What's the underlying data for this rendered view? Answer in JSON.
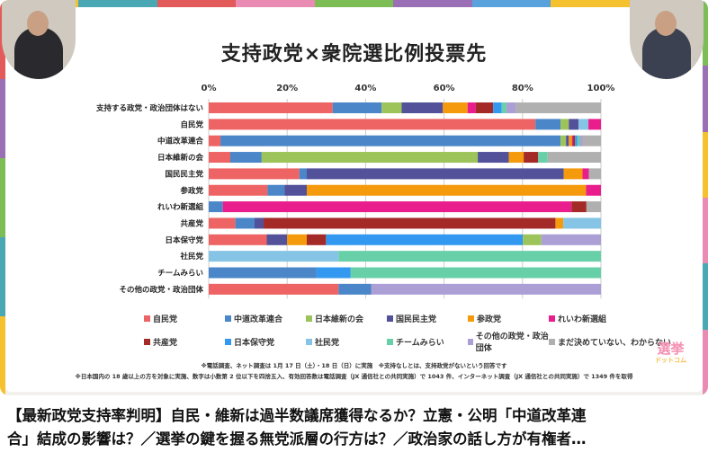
{
  "video": {
    "caption_line1": "【最新政党支持率判明】自民・維新は過半数議席獲得なるか？立憲・公明「中道改革連",
    "caption_line2": "合」結成の影響は？／選挙の鍵を握る無党派層の行方は？／政治家の話し方が有権者…"
  },
  "logo": {
    "top": "選挙",
    "bottom": "ドットコム"
  },
  "notes": [
    "※電話調査、ネット調査は 1月 17 日（土）・18 日（日）に実施　※支持なしとは、支持政党がないという回答です",
    "※日本国内の 18 歳以上の方を対象に実施、数字は小数第 2 位以下を四捨五入、有効回答数は電話調査（JX 通信社との共同実施）で 1043 件、インターネット調査（JX 通信社との共同実施）で 1349 件を取得"
  ],
  "chart_data": {
    "type": "bar",
    "orientation": "horizontal",
    "stacked": true,
    "title": "支持政党×衆院選比例投票先",
    "xlim": [
      0,
      100
    ],
    "x_ticks": [
      "0%",
      "20%",
      "40%",
      "60%",
      "80%",
      "100%"
    ],
    "grid": true,
    "legend_position": "bottom",
    "parties": [
      {
        "name": "自民党",
        "color": "#ee6363"
      },
      {
        "name": "中道改革連合",
        "color": "#4a86c8"
      },
      {
        "name": "日本維新の会",
        "color": "#9cc45a"
      },
      {
        "name": "国民民主党",
        "color": "#52519a"
      },
      {
        "name": "参政党",
        "color": "#f59a0c"
      },
      {
        "name": "れいわ新選組",
        "color": "#e91e8c"
      },
      {
        "name": "共産党",
        "color": "#a42a28"
      },
      {
        "name": "日本保守党",
        "color": "#3399f0"
      },
      {
        "name": "社民党",
        "color": "#85c4e4"
      },
      {
        "name": "チームみらい",
        "color": "#68d0a8"
      },
      {
        "name": "その他の政党・政治団体",
        "color": "#ab9fd6"
      },
      {
        "name": "まだ決めていない、わからない",
        "color": "#b0b0b0"
      }
    ],
    "rows": [
      {
        "label": "支持する政党・政治団体はない",
        "segments": [
          [
            0,
            31.6
          ],
          [
            1,
            12.5
          ],
          [
            2,
            5.1
          ],
          [
            3,
            10.5
          ],
          [
            4,
            6.3
          ],
          [
            5,
            2.1
          ],
          [
            6,
            4.4
          ],
          [
            7,
            2.2
          ],
          [
            9,
            1.2
          ],
          [
            10,
            2.4
          ],
          [
            11,
            21.7
          ]
        ]
      },
      {
        "label": "自民党",
        "segments": [
          [
            0,
            83.3
          ],
          [
            1,
            6.4
          ],
          [
            2,
            2.1
          ],
          [
            3,
            2.5
          ],
          [
            8,
            2.5
          ],
          [
            5,
            3.2
          ]
        ]
      },
      {
        "label": "中道改革連合",
        "segments": [
          [
            0,
            3.0
          ],
          [
            1,
            86.7
          ],
          [
            2,
            1.4
          ],
          [
            3,
            0.7
          ],
          [
            4,
            0.8
          ],
          [
            5,
            0.3
          ],
          [
            6,
            0.5
          ],
          [
            7,
            0.6
          ],
          [
            9,
            0.6
          ],
          [
            10,
            0.7
          ],
          [
            11,
            4.7
          ]
        ]
      },
      {
        "label": "日本維新の会",
        "segments": [
          [
            0,
            5.5
          ],
          [
            1,
            8.0
          ],
          [
            2,
            55.1
          ],
          [
            3,
            7.9
          ],
          [
            4,
            3.8
          ],
          [
            6,
            3.7
          ],
          [
            9,
            2.4
          ],
          [
            11,
            13.6
          ]
        ]
      },
      {
        "label": "国民民主党",
        "segments": [
          [
            0,
            23.1
          ],
          [
            1,
            1.9
          ],
          [
            3,
            65.5
          ],
          [
            4,
            4.8
          ],
          [
            5,
            1.6
          ],
          [
            11,
            3.1
          ]
        ]
      },
      {
        "label": "参政党",
        "segments": [
          [
            0,
            15.0
          ],
          [
            1,
            4.3
          ],
          [
            3,
            5.7
          ],
          [
            4,
            71.2
          ],
          [
            5,
            3.8
          ]
        ]
      },
      {
        "label": "れいわ新選組",
        "segments": [
          [
            1,
            3.6
          ],
          [
            5,
            88.9
          ],
          [
            6,
            3.8
          ],
          [
            11,
            3.7
          ]
        ]
      },
      {
        "label": "共産党",
        "segments": [
          [
            0,
            6.8
          ],
          [
            1,
            4.9
          ],
          [
            3,
            2.3
          ],
          [
            6,
            74.4
          ],
          [
            4,
            2.0
          ],
          [
            8,
            9.6
          ]
        ]
      },
      {
        "label": "日本保守党",
        "segments": [
          [
            0,
            14.8
          ],
          [
            3,
            5.2
          ],
          [
            4,
            5.0
          ],
          [
            6,
            4.9
          ],
          [
            7,
            50.2
          ],
          [
            2,
            4.7
          ],
          [
            10,
            15.2
          ]
        ]
      },
      {
        "label": "社民党",
        "segments": [
          [
            8,
            33.1
          ],
          [
            9,
            66.9
          ]
        ]
      },
      {
        "label": "チームみらい",
        "segments": [
          [
            1,
            27.5
          ],
          [
            7,
            8.7
          ],
          [
            9,
            63.8
          ]
        ]
      },
      {
        "label": "その他の政党・政治団体",
        "segments": [
          [
            0,
            33.1
          ],
          [
            1,
            8.3
          ],
          [
            10,
            58.6
          ]
        ]
      }
    ]
  }
}
